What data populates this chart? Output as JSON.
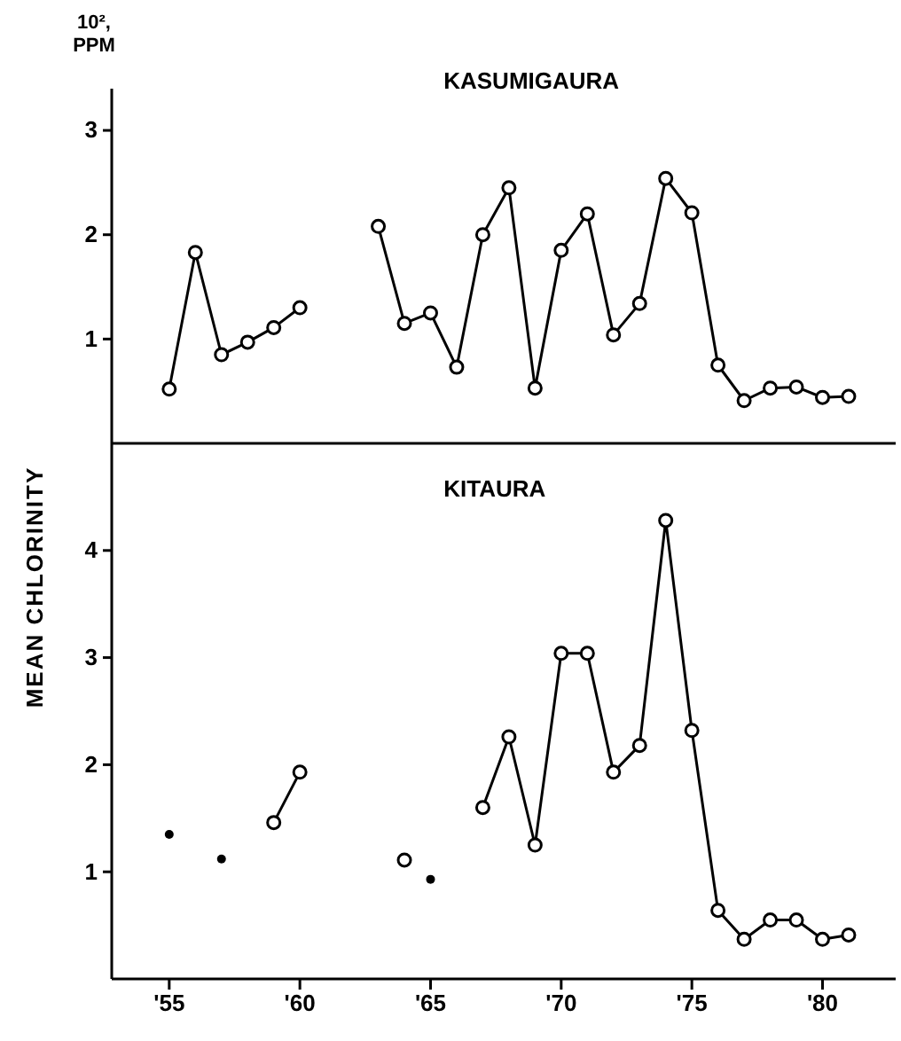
{
  "chart_data": [
    {
      "type": "line",
      "title": "KASUMIGAURA",
      "ylabel": "10², PPM",
      "x": [
        55,
        56,
        57,
        58,
        59,
        60,
        61,
        62,
        63,
        64,
        65,
        66,
        67,
        68,
        69,
        70,
        71,
        72,
        73,
        74,
        75,
        76,
        77,
        78,
        79,
        80,
        81
      ],
      "xlim": [
        52.8,
        82.8
      ],
      "ylim": [
        0,
        3.4
      ],
      "yticks": [
        1,
        2,
        3
      ],
      "tick_labels": "y",
      "marker": "circle",
      "line_style": "solid",
      "series": [
        {
          "color": "#000000",
          "values": [
            0.52,
            1.83,
            0.85,
            0.97,
            1.11,
            1.3,
            null,
            null,
            2.08,
            1.15,
            1.25,
            0.73,
            2.0,
            2.45,
            0.53,
            1.85,
            2.2,
            1.04,
            1.34,
            2.54,
            2.21,
            0.75,
            0.41,
            0.53,
            0.54,
            0.44,
            0.45
          ]
        }
      ]
    },
    {
      "type": "line",
      "title": "KITAURA",
      "ylabel": "MEAN CHLORINITY",
      "xlim": [
        52.8,
        82.8
      ],
      "xticks": [
        {
          "value": 55,
          "label": "'55"
        },
        {
          "value": 60,
          "label": "'60"
        },
        {
          "value": 65,
          "label": "'65"
        },
        {
          "value": 70,
          "label": "'70"
        },
        {
          "value": 75,
          "label": "'75"
        },
        {
          "value": 80,
          "label": "'80"
        }
      ],
      "ylim": [
        0,
        5
      ],
      "yticks": [
        1,
        2,
        3,
        4
      ],
      "marker": "circle",
      "line_style": "solid",
      "series": [
        {
          "color": "#000000",
          "x": [
            59,
            60,
            61,
            62,
            63,
            64,
            65,
            66,
            67,
            68,
            69,
            70,
            71,
            72,
            73,
            74,
            75,
            76,
            77,
            78,
            79,
            80,
            81
          ],
          "values": [
            1.46,
            1.93,
            null,
            null,
            null,
            1.11,
            null,
            null,
            1.6,
            2.26,
            1.25,
            3.04,
            3.04,
            1.93,
            2.18,
            4.28,
            2.32,
            0.64,
            0.37,
            0.55,
            0.55,
            0.37,
            0.41
          ]
        },
        {
          "type": "scatter",
          "color": "#000000",
          "x": [
            55,
            57,
            65
          ],
          "values": [
            1.35,
            1.12,
            0.93
          ]
        }
      ]
    }
  ]
}
